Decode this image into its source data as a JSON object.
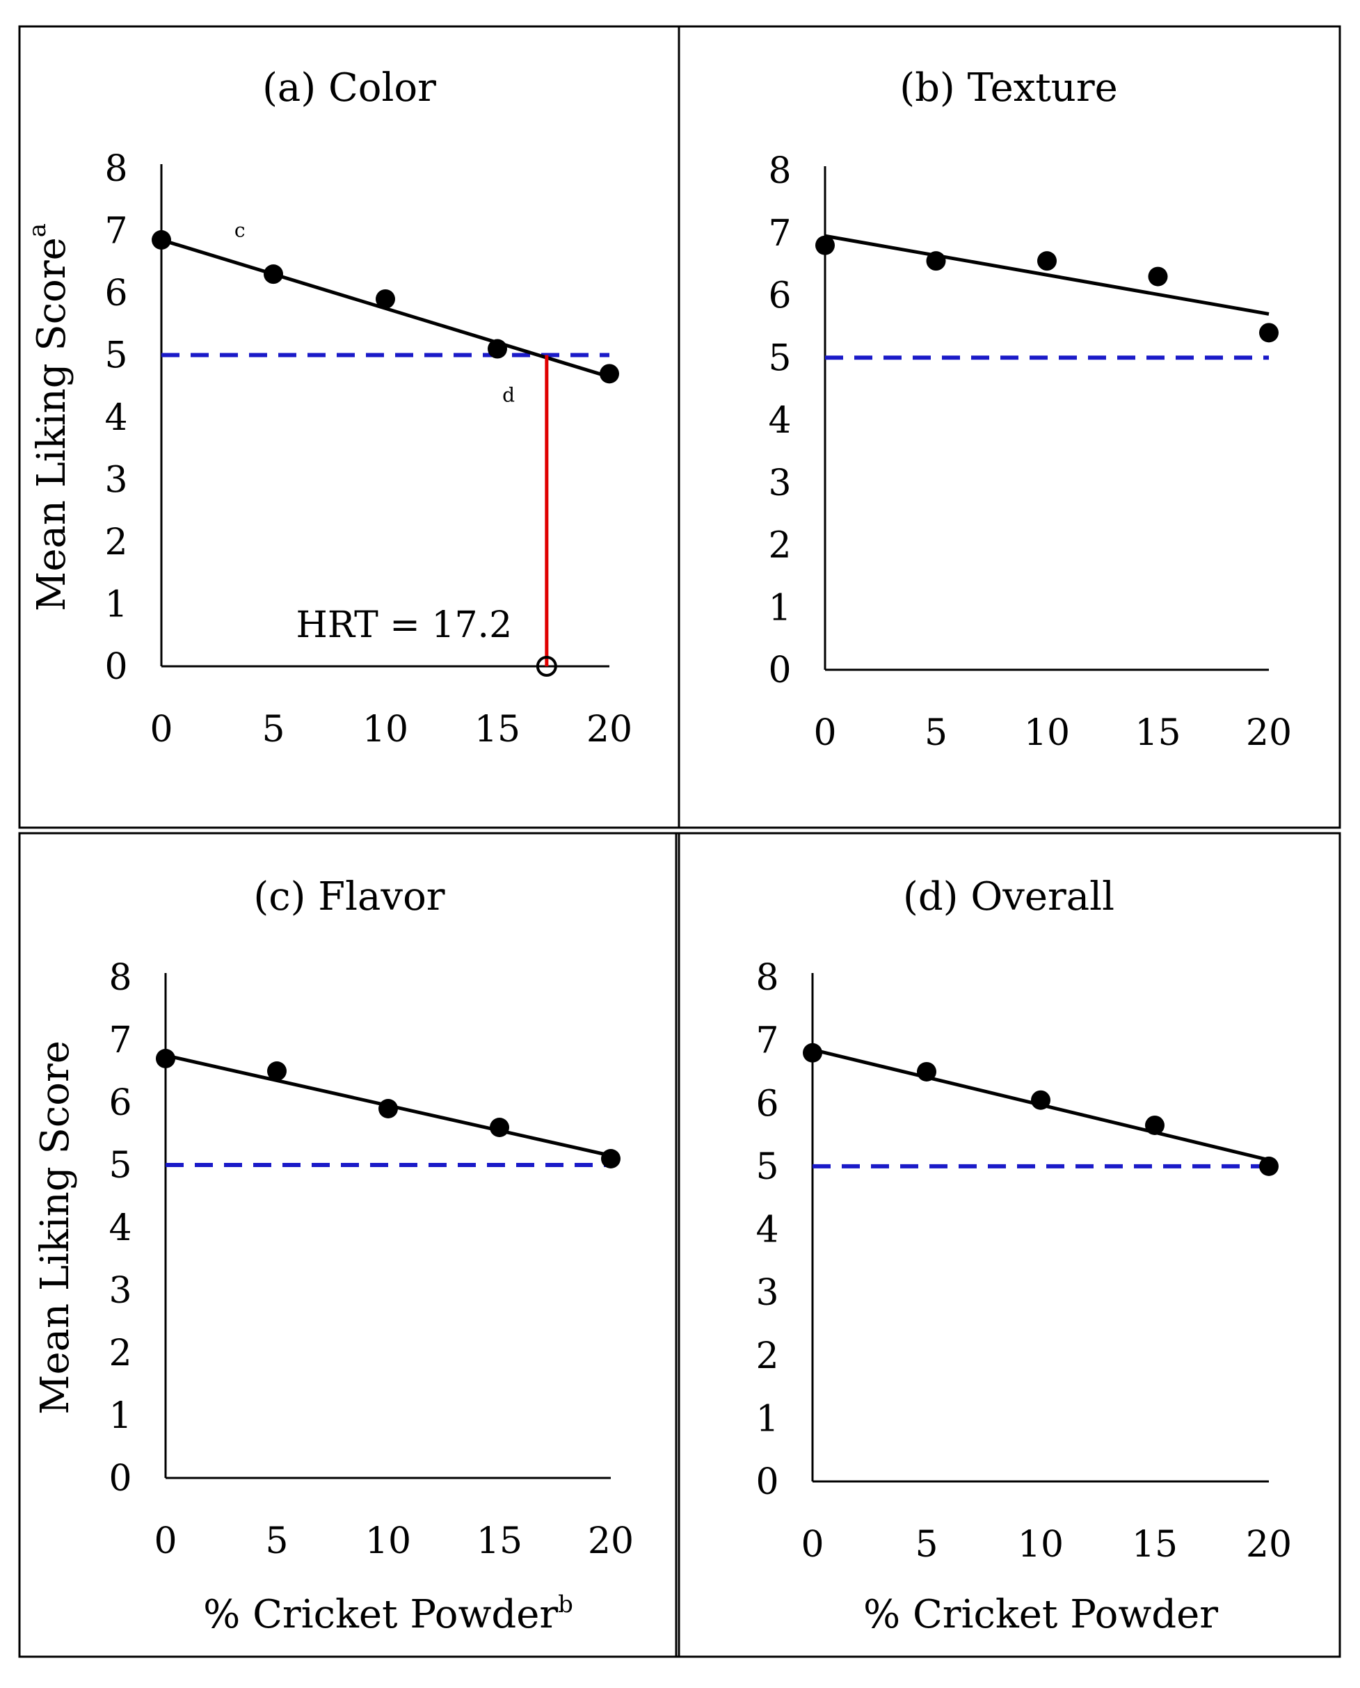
{
  "figure": {
    "panels_order": [
      "a",
      "b",
      "c",
      "d"
    ]
  },
  "chart_data": [
    {
      "id": "a",
      "type": "scatter",
      "title": "(a) Color",
      "ylabel": "Mean Liking Score",
      "ylabel_superscript": "a",
      "xlabel": "",
      "x": [
        0,
        5,
        10,
        15,
        20
      ],
      "values": [
        6.85,
        6.3,
        5.9,
        5.1,
        4.7
      ],
      "trendline": {
        "x": [
          0,
          20
        ],
        "y": [
          6.85,
          4.65
        ]
      },
      "threshold": 5,
      "xlim": [
        0,
        20
      ],
      "ylim": [
        0,
        8
      ],
      "xticks": [
        "0",
        "5",
        "10",
        "15",
        "20"
      ],
      "yticks": [
        "0",
        "1",
        "2",
        "3",
        "4",
        "5",
        "6",
        "7",
        "8"
      ],
      "annotations": [
        {
          "text": "c",
          "x": 3.5,
          "y": 6.9
        },
        {
          "text": "d",
          "x": 15.5,
          "y": 4.25
        }
      ],
      "hrt": {
        "label": "HRT = 17.2",
        "x": 17.2
      },
      "colors": {
        "trend": "#000000",
        "points": "#000000",
        "threshold": "#1a1ac8",
        "hrt_line": "#e00000"
      }
    },
    {
      "id": "b",
      "type": "scatter",
      "title": "(b) Texture",
      "ylabel": "",
      "xlabel": "",
      "x": [
        0,
        5,
        10,
        15,
        20
      ],
      "values": [
        6.8,
        6.55,
        6.55,
        6.3,
        5.4
      ],
      "trendline": {
        "x": [
          0,
          20
        ],
        "y": [
          6.95,
          5.7
        ]
      },
      "threshold": 5,
      "xlim": [
        0,
        20
      ],
      "ylim": [
        0,
        8
      ],
      "xticks": [
        "0",
        "5",
        "10",
        "15",
        "20"
      ],
      "yticks": [
        "0",
        "1",
        "2",
        "3",
        "4",
        "5",
        "6",
        "7",
        "8"
      ],
      "colors": {
        "trend": "#000000",
        "points": "#000000",
        "threshold": "#1a1ac8"
      }
    },
    {
      "id": "c",
      "type": "scatter",
      "title": "(c) Flavor",
      "ylabel": "Mean Liking Score",
      "xlabel": "% Cricket Powder",
      "xlabel_superscript": "b",
      "x": [
        0,
        5,
        10,
        15,
        20
      ],
      "values": [
        6.7,
        6.5,
        5.9,
        5.6,
        5.1
      ],
      "trendline": {
        "x": [
          0,
          20
        ],
        "y": [
          6.75,
          5.15
        ]
      },
      "threshold": 5,
      "xlim": [
        0,
        20
      ],
      "ylim": [
        0,
        8
      ],
      "xticks": [
        "0",
        "5",
        "10",
        "15",
        "20"
      ],
      "yticks": [
        "0",
        "1",
        "2",
        "3",
        "4",
        "5",
        "6",
        "7",
        "8"
      ],
      "colors": {
        "trend": "#000000",
        "points": "#000000",
        "threshold": "#1a1ac8"
      }
    },
    {
      "id": "d",
      "type": "scatter",
      "title": "(d) Overall",
      "ylabel": "",
      "xlabel": "% Cricket Powder",
      "x": [
        0,
        5,
        10,
        15,
        20
      ],
      "values": [
        6.8,
        6.5,
        6.05,
        5.65,
        5.0
      ],
      "trendline": {
        "x": [
          0,
          20
        ],
        "y": [
          6.85,
          5.1
        ]
      },
      "threshold": 5,
      "xlim": [
        0,
        20
      ],
      "ylim": [
        0,
        8
      ],
      "xticks": [
        "0",
        "5",
        "10",
        "15",
        "20"
      ],
      "yticks": [
        "0",
        "1",
        "2",
        "3",
        "4",
        "5",
        "6",
        "7",
        "8"
      ],
      "colors": {
        "trend": "#000000",
        "points": "#000000",
        "threshold": "#1a1ac8"
      }
    }
  ]
}
